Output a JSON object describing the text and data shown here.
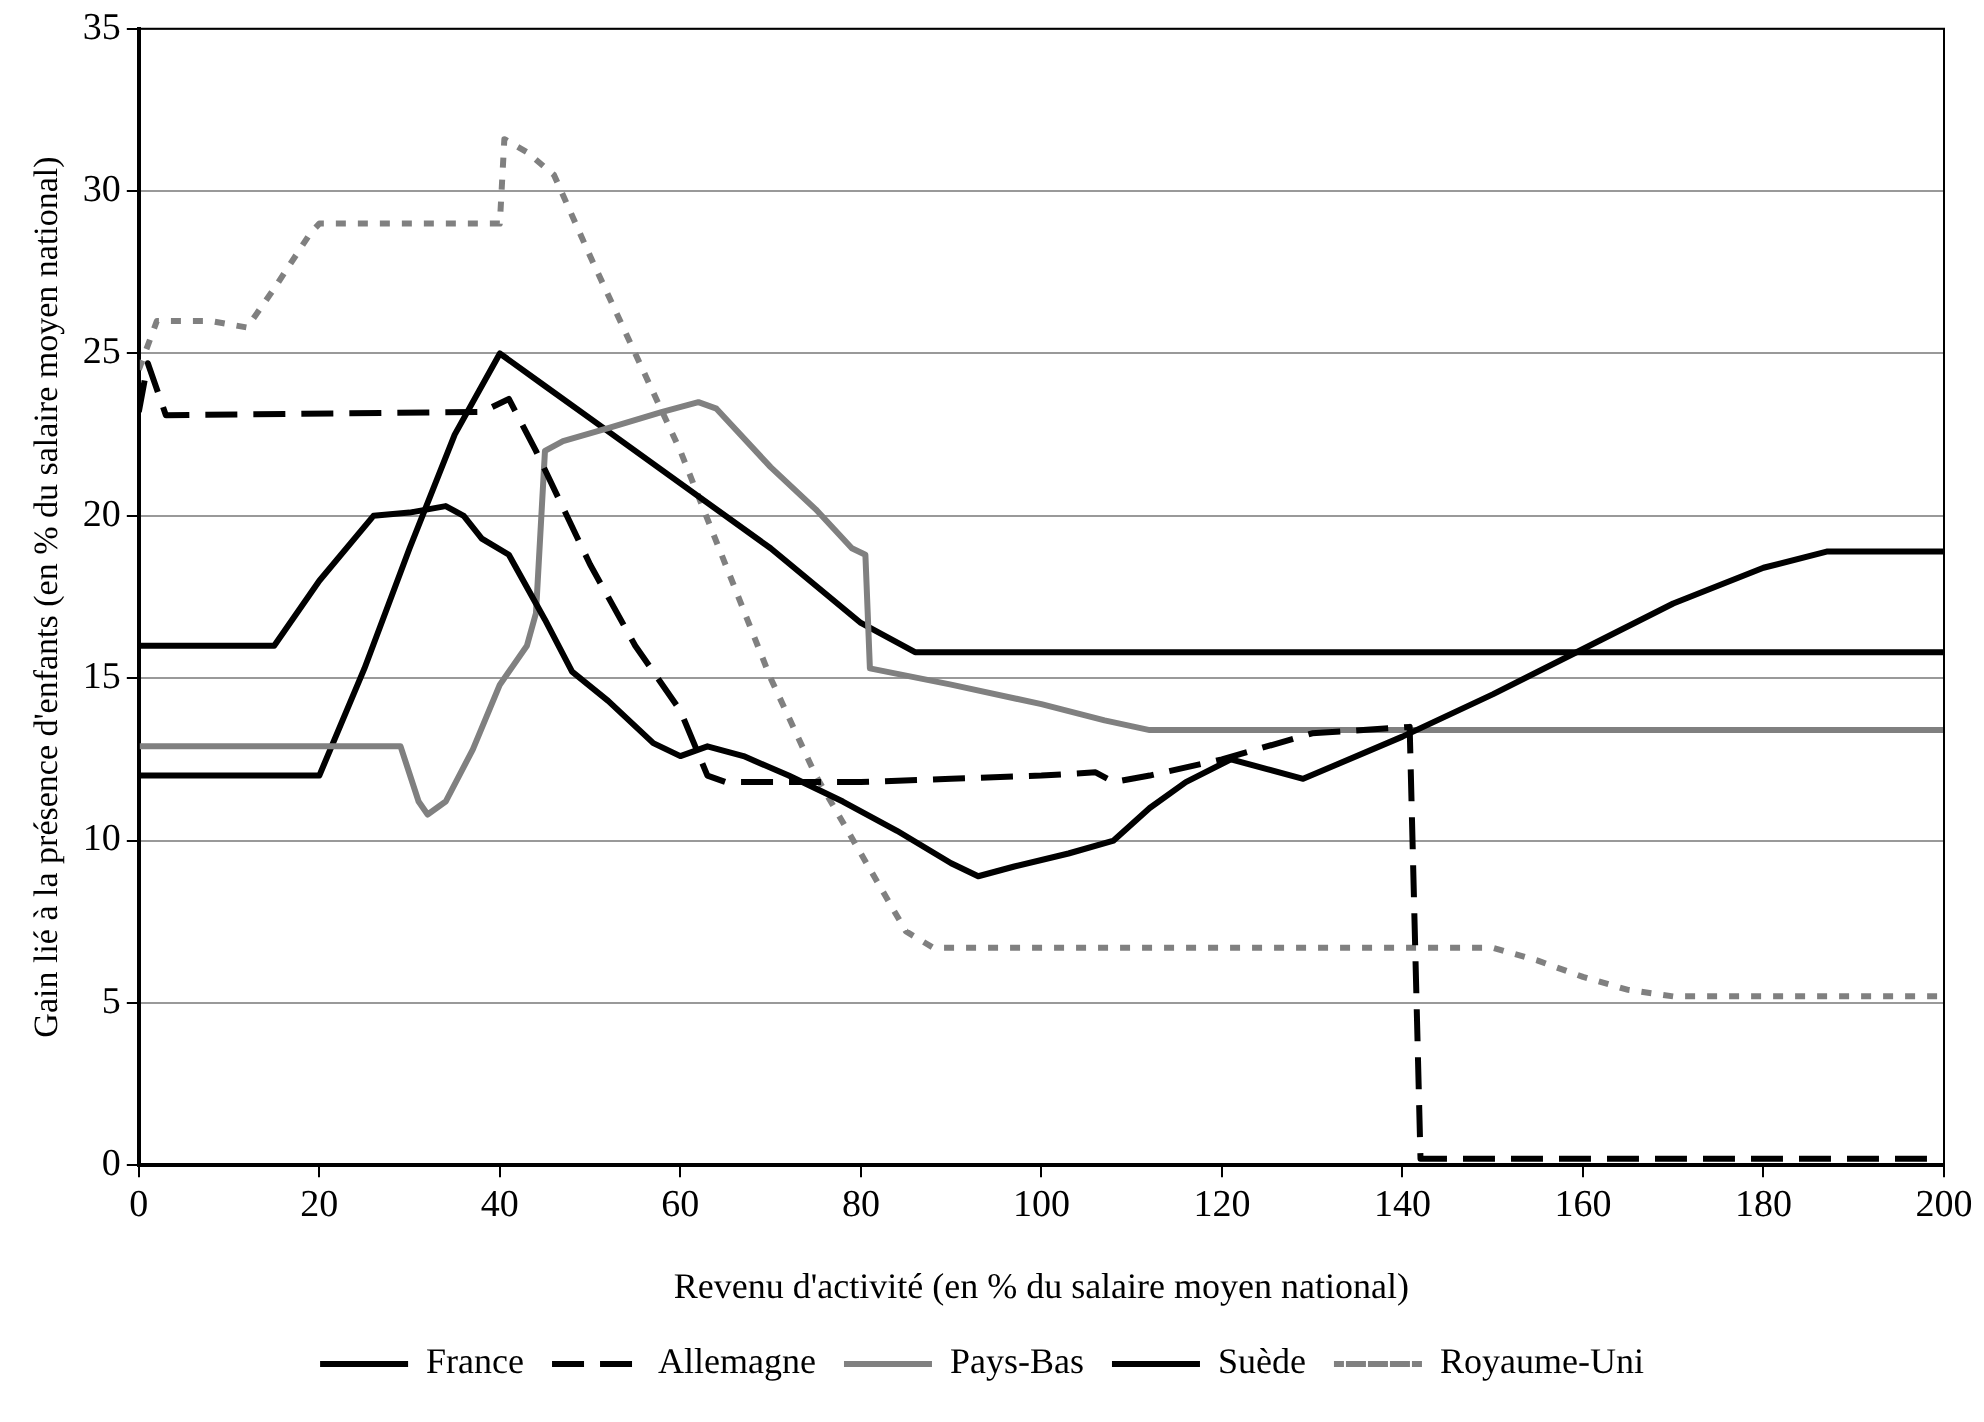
{
  "chart_data": {
    "type": "line",
    "xlabel": "Revenu d'activité (en % du salaire moyen national)",
    "ylabel": "Gain lié à la présence d'enfants (en % du salaire moyen national)",
    "xlim": [
      0,
      200
    ],
    "xticks": [
      0,
      20,
      40,
      60,
      80,
      100,
      120,
      140,
      160,
      180,
      200
    ],
    "ylim": [
      0,
      35
    ],
    "yticks": [
      0,
      5,
      10,
      15,
      20,
      25,
      30,
      35
    ],
    "grid": "y",
    "legend": "bottom",
    "marker": "none",
    "series": [
      {
        "name": "France",
        "color": "#000000",
        "line_style": "solid",
        "x": [
          0,
          15,
          20,
          26,
          30,
          34,
          36,
          38,
          41,
          45,
          48,
          52,
          57,
          60,
          63,
          67,
          72,
          78,
          84,
          90,
          93,
          97,
          103,
          108,
          112,
          116,
          121,
          125,
          129,
          140,
          150,
          160,
          170,
          180,
          187,
          200
        ],
        "values": [
          16,
          16,
          18,
          20,
          20.1,
          20.3,
          20,
          19.3,
          18.8,
          16.8,
          15.2,
          14.3,
          13,
          12.6,
          12.9,
          12.6,
          12,
          11.2,
          10.3,
          9.3,
          8.9,
          9.2,
          9.6,
          10,
          11,
          11.8,
          12.5,
          12.2,
          11.9,
          13.2,
          14.5,
          15.9,
          17.3,
          18.4,
          18.9,
          18.9
        ]
      },
      {
        "name": "Allemagne",
        "color": "#000000",
        "line_style": "dashed",
        "x": [
          0,
          1,
          3,
          38,
          41,
          44,
          50,
          55,
          60,
          63,
          65,
          70,
          80,
          90,
          100,
          106,
          108,
          112,
          120,
          130,
          140.8,
          142,
          200
        ],
        "values": [
          23.2,
          24.7,
          23.1,
          23.2,
          23.6,
          22,
          18.5,
          16,
          14,
          12,
          11.8,
          11.8,
          11.8,
          11.9,
          12,
          12.1,
          11.8,
          12,
          12.5,
          13.3,
          13.5,
          0.2,
          0.2
        ]
      },
      {
        "name": "Pays-Bas",
        "color": "#808080",
        "line_style": "solid",
        "x": [
          0,
          29,
          31,
          32,
          34,
          37,
          40,
          43,
          44,
          45,
          47,
          52,
          58,
          62,
          64,
          70,
          75,
          79,
          80.5,
          81,
          90,
          100,
          107,
          112,
          140,
          200
        ],
        "values": [
          12.9,
          12.9,
          11.2,
          10.8,
          11.2,
          12.8,
          14.8,
          16,
          17,
          22,
          22.3,
          22.7,
          23.2,
          23.5,
          23.3,
          21.5,
          20.2,
          19,
          18.8,
          15.3,
          14.8,
          14.2,
          13.7,
          13.4,
          13.4,
          13.4
        ]
      },
      {
        "name": "Suède",
        "color": "#000000",
        "line_style": "solid",
        "x": [
          0,
          20,
          25,
          30,
          35,
          40,
          45,
          50,
          60,
          70,
          80,
          86,
          200
        ],
        "values": [
          12,
          12,
          15.3,
          19,
          22.5,
          25,
          24,
          23,
          21,
          19,
          16.7,
          15.8,
          15.8
        ]
      },
      {
        "name": "Royaume-Uni",
        "color": "#808080",
        "line_style": "dotted",
        "x": [
          0,
          2,
          8,
          12,
          15,
          19,
          20,
          40,
          40.5,
          43,
          46,
          50,
          55,
          60,
          65,
          70,
          75,
          80,
          85,
          88,
          140,
          150,
          155,
          160,
          165,
          170,
          200
        ],
        "values": [
          24.5,
          26,
          26,
          25.8,
          27,
          28.7,
          29,
          29,
          31.6,
          31.2,
          30.5,
          28,
          25,
          22,
          18.5,
          15,
          12,
          9.6,
          7.2,
          6.7,
          6.7,
          6.7,
          6.3,
          5.8,
          5.4,
          5.2,
          5.2
        ]
      }
    ]
  }
}
